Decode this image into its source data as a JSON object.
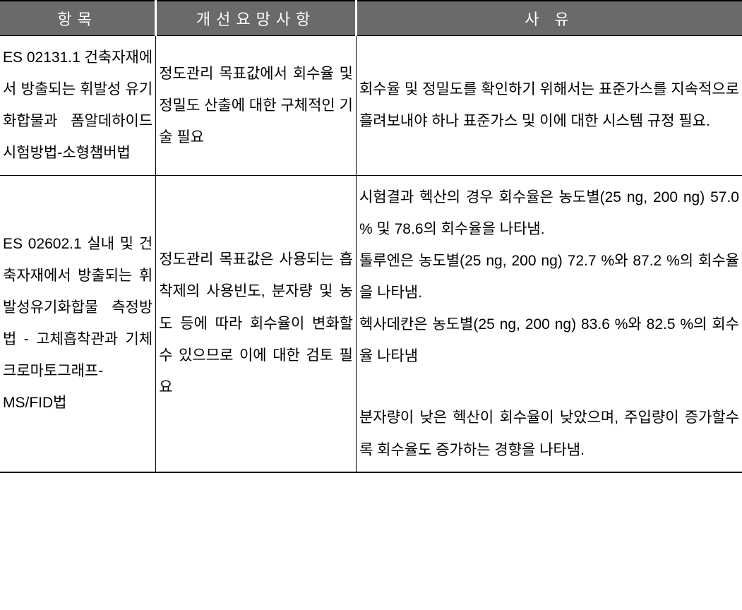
{
  "table": {
    "headers": [
      "항목",
      "개선요망사항",
      "사 유"
    ],
    "col_widths": [
      "21%",
      "27%",
      "52%"
    ],
    "header_bg": "#6a6a6a",
    "header_fg": "#ffffff",
    "border_color": "#000000",
    "font_size": 21,
    "line_height": 2.15,
    "rows": [
      {
        "item": "ES 02131.1 건축자재에서 방출되는 휘발성 유기화합물과 폼알데하이드 시험방법-소형챔버법",
        "improvement": "정도관리 목표값에서 회수율 및 정밀도 산출에 대한 구체적인 기술 필요",
        "reason": "회수율 및 정밀도를 확인하기 위해서는 표준가스를 지속적으로 흘려보내야 하나 표준가스 및 이에 대한 시스템 규정 필요."
      },
      {
        "item": "ES 02602.1 실내 및 건축자재에서 방출되는 휘발성유기화합물 측정방법 - 고체흡착관과 기체크로마토그래프-MS/FID법",
        "improvement": "정도관리 목표값은 사용되는 흡착제의 사용빈도, 분자량 및 농도 등에 따라 회수율이 변화할 수 있으므로 이에 대한 검토 필요",
        "reason_parts": [
          "시험결과 헥산의 경우 회수율은 농도별(25 ng, 200 ng) 57.0 % 및 78.6의 회수율을 나타냄.",
          "톨루엔은 농도별(25 ng, 200 ng) 72.7 %와 87.2 %의 회수율을 나타냄.",
          "헥사데칸은 농도별(25 ng, 200 ng) 83.6 %와 82.5 %의 회수율 나타냄",
          "분자량이 낮은 헥산이 회수율이 낮았으며, 주입량이 증가할수록 회수율도 증가하는 경향을 나타냄."
        ]
      }
    ]
  }
}
